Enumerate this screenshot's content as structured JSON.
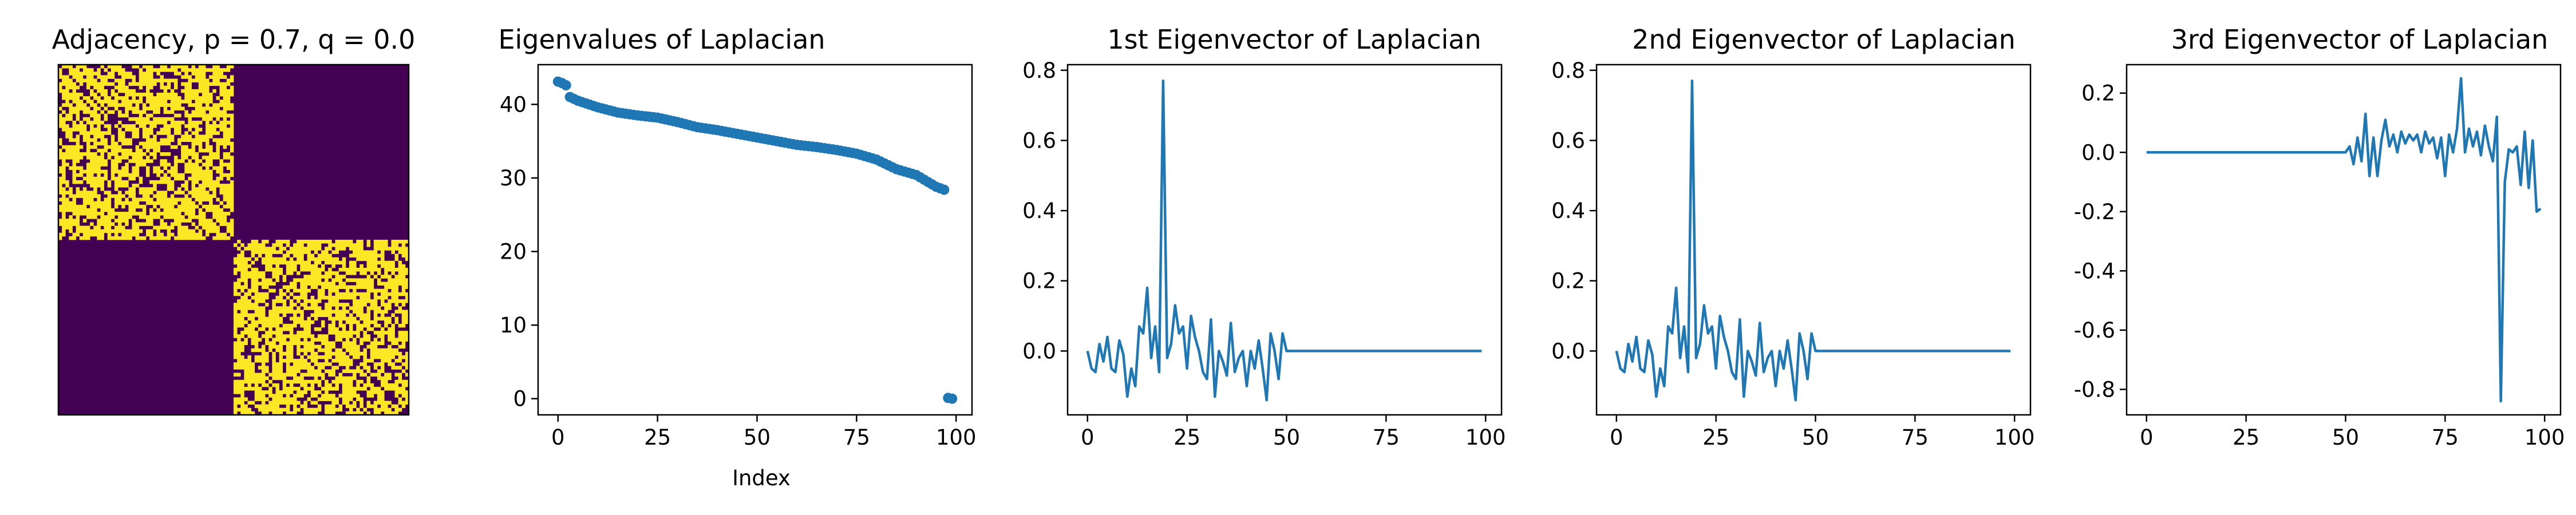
{
  "chart_data": [
    {
      "type": "heatmap",
      "title": "Adjacency, p = 0.7, q = 0.0",
      "n": 100,
      "p": 0.7,
      "q": 0.0,
      "colors": {
        "low": "#440154",
        "high": "#fde725"
      }
    },
    {
      "type": "scatter",
      "title": "Eigenvalues of Laplacian",
      "xlabel": "Index",
      "ylabel": "",
      "xlim": [
        -5,
        104
      ],
      "ylim": [
        -2.2,
        45.4
      ],
      "xticks": [
        0,
        25,
        50,
        75,
        100
      ],
      "yticks": [
        0,
        10,
        20,
        30,
        40
      ],
      "color": "#1f77b4",
      "x": [
        0,
        1,
        2,
        3,
        5,
        10,
        15,
        20,
        25,
        30,
        35,
        40,
        45,
        50,
        55,
        60,
        65,
        70,
        75,
        80,
        85,
        90,
        95,
        97,
        98,
        99
      ],
      "y": [
        43.1,
        42.9,
        42.6,
        41.0,
        40.5,
        39.6,
        38.9,
        38.5,
        38.2,
        37.6,
        36.9,
        36.5,
        36.0,
        35.5,
        35.0,
        34.5,
        34.2,
        33.8,
        33.3,
        32.5,
        31.2,
        30.4,
        28.8,
        28.4,
        0.1,
        0.0
      ]
    },
    {
      "type": "line",
      "title": "1st Eigenvector of Laplacian",
      "xlim": [
        -5,
        104
      ],
      "ylim": [
        -0.182,
        0.816
      ],
      "xticks": [
        0,
        25,
        50,
        75,
        100
      ],
      "yticks": [
        0.0,
        0.2,
        0.4,
        0.6,
        0.8
      ],
      "color": "#1f77b4",
      "x": [
        0,
        1,
        2,
        3,
        4,
        5,
        6,
        7,
        8,
        9,
        10,
        11,
        12,
        13,
        14,
        15,
        16,
        17,
        18,
        19,
        20,
        21,
        22,
        23,
        24,
        25,
        26,
        27,
        28,
        29,
        30,
        31,
        32,
        33,
        34,
        35,
        36,
        37,
        38,
        39,
        40,
        41,
        42,
        43,
        44,
        45,
        46,
        47,
        48,
        49,
        50,
        99
      ],
      "y": [
        0.0,
        -0.05,
        -0.06,
        0.02,
        -0.03,
        0.04,
        -0.05,
        -0.06,
        0.03,
        -0.01,
        -0.13,
        -0.05,
        -0.1,
        0.07,
        0.05,
        0.18,
        -0.02,
        0.07,
        -0.06,
        0.77,
        -0.02,
        0.02,
        0.13,
        0.05,
        0.07,
        -0.05,
        0.1,
        0.04,
        0.0,
        -0.06,
        -0.08,
        0.09,
        -0.13,
        0.0,
        -0.03,
        -0.07,
        0.08,
        -0.06,
        -0.02,
        0.0,
        -0.1,
        0.0,
        -0.05,
        0.03,
        -0.05,
        -0.14,
        0.05,
        0.0,
        -0.08,
        0.05,
        0.0,
        0.0
      ]
    },
    {
      "type": "line",
      "title": "2nd Eigenvector of Laplacian",
      "xlim": [
        -5,
        104
      ],
      "ylim": [
        -0.182,
        0.816
      ],
      "xticks": [
        0,
        25,
        50,
        75,
        100
      ],
      "yticks": [
        0.0,
        0.2,
        0.4,
        0.6,
        0.8
      ],
      "color": "#1f77b4",
      "x": [
        0,
        1,
        2,
        3,
        4,
        5,
        6,
        7,
        8,
        9,
        10,
        11,
        12,
        13,
        14,
        15,
        16,
        17,
        18,
        19,
        20,
        21,
        22,
        23,
        24,
        25,
        26,
        27,
        28,
        29,
        30,
        31,
        32,
        33,
        34,
        35,
        36,
        37,
        38,
        39,
        40,
        41,
        42,
        43,
        44,
        45,
        46,
        47,
        48,
        49,
        50,
        99
      ],
      "y": [
        0.0,
        -0.05,
        -0.06,
        0.02,
        -0.03,
        0.04,
        -0.05,
        -0.06,
        0.03,
        -0.01,
        -0.13,
        -0.05,
        -0.1,
        0.07,
        0.05,
        0.18,
        -0.02,
        0.07,
        -0.06,
        0.77,
        -0.02,
        0.02,
        0.13,
        0.05,
        0.07,
        -0.05,
        0.1,
        0.04,
        0.0,
        -0.06,
        -0.08,
        0.09,
        -0.13,
        0.0,
        -0.03,
        -0.07,
        0.08,
        -0.06,
        -0.02,
        0.0,
        -0.1,
        0.0,
        -0.05,
        0.03,
        -0.05,
        -0.14,
        0.05,
        0.0,
        -0.08,
        0.05,
        0.0,
        0.0
      ]
    },
    {
      "type": "line",
      "title": "3rd Eigenvector of Laplacian",
      "xlim": [
        -5,
        104
      ],
      "ylim": [
        -0.886,
        0.296
      ],
      "xticks": [
        0,
        25,
        50,
        75,
        100
      ],
      "yticks": [
        0.2,
        0.0,
        -0.2,
        -0.4,
        -0.6,
        -0.8
      ],
      "color": "#1f77b4",
      "x": [
        0,
        50,
        51,
        52,
        53,
        54,
        55,
        56,
        57,
        58,
        59,
        60,
        61,
        62,
        63,
        64,
        65,
        66,
        67,
        68,
        69,
        70,
        71,
        72,
        73,
        74,
        75,
        76,
        77,
        78,
        79,
        80,
        81,
        82,
        83,
        84,
        85,
        86,
        87,
        88,
        89,
        90,
        91,
        92,
        93,
        94,
        95,
        96,
        97,
        98,
        99
      ],
      "y": [
        0.0,
        0.0,
        0.02,
        -0.04,
        0.05,
        -0.03,
        0.13,
        -0.08,
        0.05,
        -0.08,
        0.04,
        0.11,
        0.02,
        0.06,
        0.0,
        0.07,
        0.03,
        0.06,
        0.04,
        0.06,
        0.0,
        0.07,
        0.03,
        0.05,
        -0.02,
        0.05,
        -0.08,
        0.06,
        0.0,
        0.08,
        0.25,
        0.0,
        0.08,
        0.02,
        0.07,
        -0.01,
        0.09,
        0.02,
        -0.03,
        0.12,
        -0.84,
        -0.1,
        0.01,
        0.0,
        0.02,
        -0.11,
        0.07,
        -0.12,
        0.04,
        -0.2,
        -0.19
      ]
    }
  ]
}
